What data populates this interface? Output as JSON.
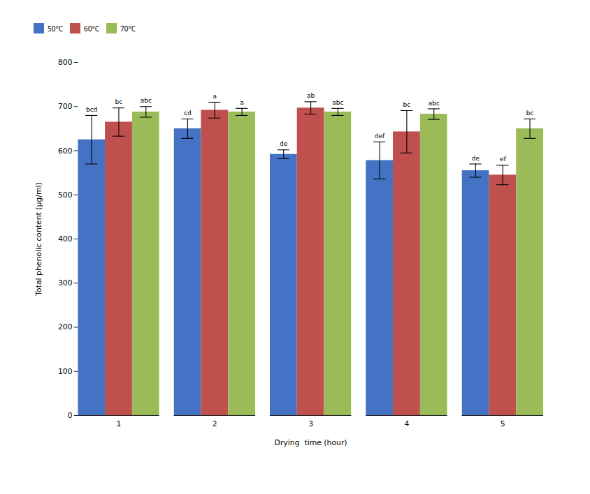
{
  "chart_data": {
    "type": "bar",
    "categories": [
      1,
      2,
      3,
      4,
      5
    ],
    "xlabel": "Drying  time (hour)",
    "ylabel": "Total phenolic content (μg/ml)",
    "ylim": [
      0,
      800
    ],
    "yticks": [
      0,
      100,
      200,
      300,
      400,
      500,
      600,
      700,
      800
    ],
    "grid": false,
    "legend": "right",
    "series": [
      {
        "name": "50°C",
        "color": "#4472C4",
        "values": [
          625,
          650,
          592,
          578,
          555
        ],
        "errors": [
          55,
          22,
          10,
          42,
          15
        ],
        "labels": [
          "bcd",
          "cd",
          "de",
          "def",
          "de"
        ]
      },
      {
        "name": "60°C",
        "color": "#C0504D",
        "values": [
          665,
          692,
          697,
          643,
          545
        ],
        "errors": [
          32,
          18,
          14,
          48,
          22
        ],
        "labels": [
          "bc",
          "a",
          "ab",
          "bc",
          "ef"
        ]
      },
      {
        "name": "70°C",
        "color": "#9BBB59",
        "values": [
          688,
          688,
          688,
          683,
          650
        ],
        "errors": [
          12,
          8,
          8,
          12,
          22
        ],
        "labels": [
          "abc",
          "a",
          "abc",
          "abc",
          "bc"
        ]
      }
    ]
  }
}
